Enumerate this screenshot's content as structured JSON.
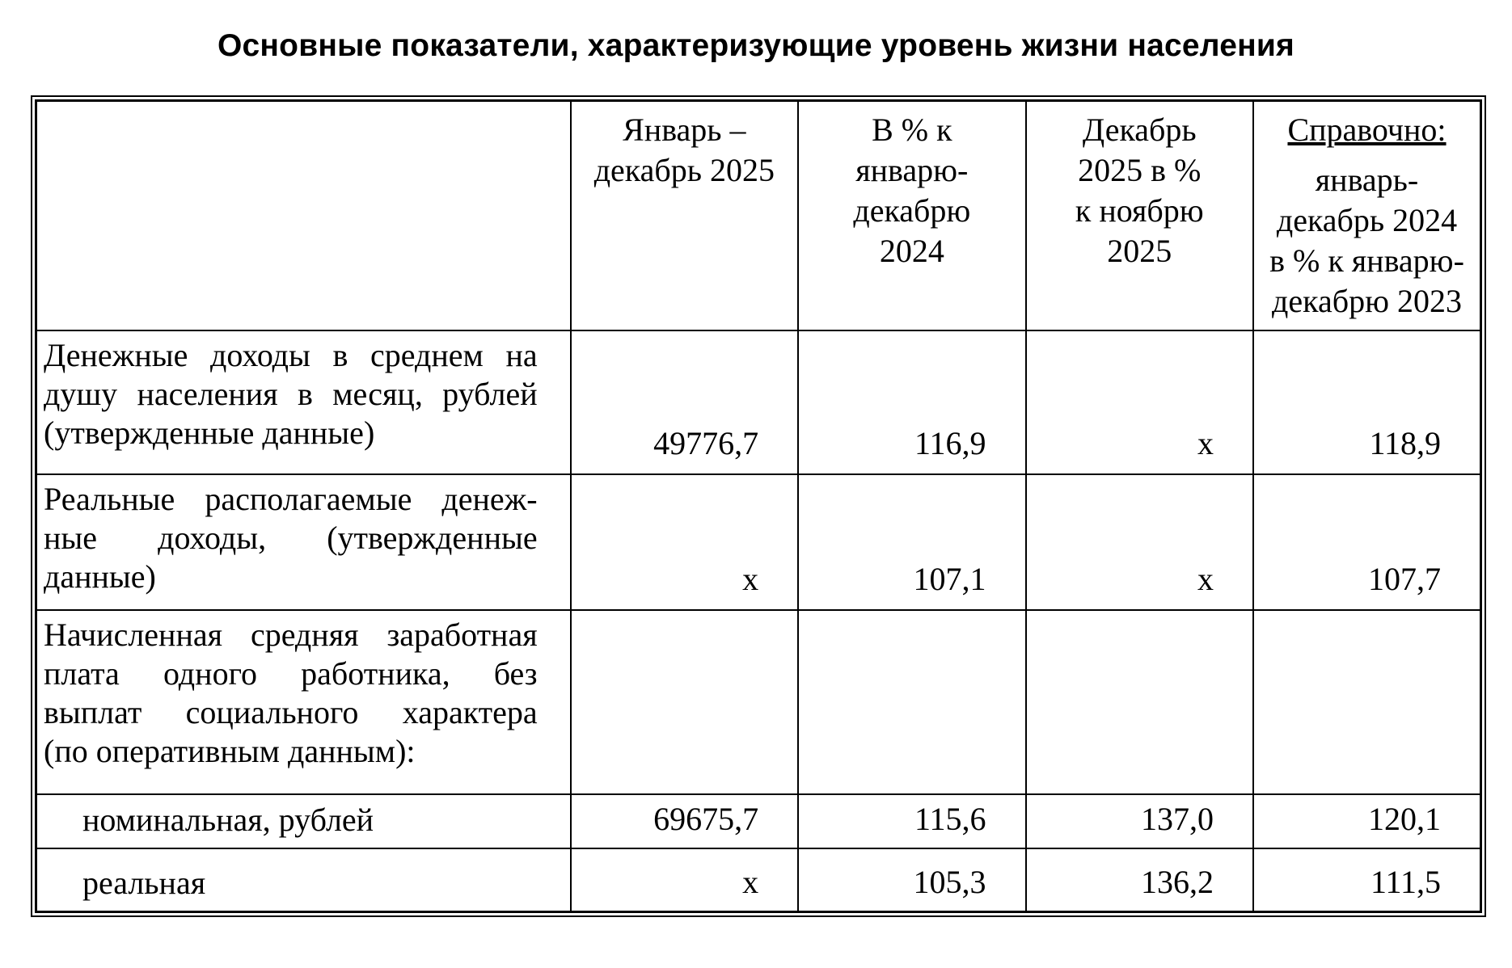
{
  "title": "Основные показатели, характеризующие уровень жизни населения",
  "colors": {
    "text": "#000000",
    "background": "#ffffff",
    "border": "#000000"
  },
  "table": {
    "header": {
      "col_indicator": "",
      "col_period": {
        "lines": [
          "Январь –",
          "декабрь 2025"
        ]
      },
      "col_pct_prev_year": {
        "lines": [
          "В % к",
          "январю-",
          "декабрю",
          "2024"
        ]
      },
      "col_pct_prev_month": {
        "lines": [
          "Декабрь",
          "2025 в %",
          "к ноябрю",
          "2025"
        ]
      },
      "col_reference": {
        "title": "Справочно:",
        "lines": [
          "январь-",
          "декабрь 2024",
          "в % к январю-",
          "декабрю 2023"
        ]
      }
    },
    "rows": [
      {
        "label_lines": [
          "Денежные доходы в среднем на",
          "душу  населения в месяц, рублей",
          "(утвержденные данные)"
        ],
        "values": [
          "49776,7",
          "116,9",
          "x",
          "118,9"
        ]
      },
      {
        "label_lines": [
          "Реальные располагаемые денеж-",
          "ные доходы, (утвержденные",
          "данные)"
        ],
        "values": [
          "x",
          "107,1",
          "x",
          "107,7"
        ]
      },
      {
        "label_lines": [
          "Начисленная средняя заработная",
          "плата одного работника, без",
          "выплат социального характера",
          "(по оперативным данным):"
        ],
        "values": [
          "",
          "",
          "",
          ""
        ]
      },
      {
        "label_lines": [
          "номинальная, рублей"
        ],
        "values": [
          "69675,7",
          "115,6",
          "137,0",
          "120,1"
        ]
      },
      {
        "label_lines": [
          "реальная"
        ],
        "values": [
          "x",
          "105,3",
          "136,2",
          "111,5"
        ]
      }
    ]
  }
}
